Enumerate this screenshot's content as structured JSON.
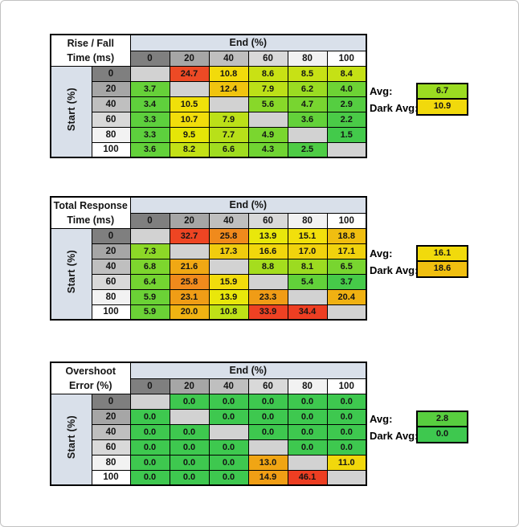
{
  "shared": {
    "end_header": "End (%)",
    "start_header": "Start (%)",
    "col_headers": [
      "0",
      "20",
      "40",
      "60",
      "80",
      "100"
    ],
    "row_headers": [
      "0",
      "20",
      "40",
      "60",
      "80",
      "100"
    ],
    "header_gradient": [
      "#7F7F7F",
      "#A6A6A6",
      "#BFBFBF",
      "#D9D9D9",
      "#F2F2F2",
      "#FFFFFF"
    ],
    "header_blue": "#D9E0EA",
    "blank_cell_color": "#D2D2D2",
    "avg_label": "Avg:",
    "dark_avg_label": "Dark Avg:"
  },
  "chart_data": [
    {
      "type": "heatmap",
      "title": "Rise / Fall Time (ms)",
      "xlabel": "End (%)",
      "ylabel": "Start (%)",
      "x": [
        0,
        20,
        40,
        60,
        80,
        100
      ],
      "y": [
        0,
        20,
        40,
        60,
        80,
        100
      ],
      "values": [
        [
          null,
          24.7,
          10.8,
          8.6,
          8.5,
          8.4
        ],
        [
          3.7,
          null,
          12.4,
          7.9,
          6.2,
          4.0
        ],
        [
          3.4,
          10.5,
          null,
          5.6,
          4.7,
          2.9
        ],
        [
          3.3,
          10.7,
          7.9,
          null,
          3.6,
          2.2
        ],
        [
          3.3,
          9.5,
          7.7,
          4.9,
          null,
          1.5
        ],
        [
          3.6,
          8.2,
          6.6,
          4.3,
          2.5,
          null
        ]
      ],
      "avg": 6.7,
      "dark_avg": 10.9
    },
    {
      "type": "heatmap",
      "title": "Total Response Time (ms)",
      "xlabel": "End (%)",
      "ylabel": "Start (%)",
      "x": [
        0,
        20,
        40,
        60,
        80,
        100
      ],
      "y": [
        0,
        20,
        40,
        60,
        80,
        100
      ],
      "values": [
        [
          null,
          32.7,
          25.8,
          13.9,
          15.1,
          18.8
        ],
        [
          7.3,
          null,
          17.3,
          16.6,
          17.0,
          17.1
        ],
        [
          6.8,
          21.6,
          null,
          8.8,
          8.1,
          6.5
        ],
        [
          6.4,
          25.8,
          15.9,
          null,
          5.4,
          3.7
        ],
        [
          5.9,
          23.1,
          13.9,
          23.3,
          null,
          20.4
        ],
        [
          5.9,
          20.0,
          10.8,
          33.9,
          34.4,
          null
        ]
      ],
      "avg": 16.1,
      "dark_avg": 18.6
    },
    {
      "type": "heatmap",
      "title": "Overshoot Error (%)",
      "xlabel": "End (%)",
      "ylabel": "Start (%)",
      "x": [
        0,
        20,
        40,
        60,
        80,
        100
      ],
      "y": [
        0,
        20,
        40,
        60,
        80,
        100
      ],
      "values": [
        [
          null,
          0.0,
          0.0,
          0.0,
          0.0,
          0.0
        ],
        [
          0.0,
          null,
          0.0,
          0.0,
          0.0,
          0.0
        ],
        [
          0.0,
          0.0,
          null,
          0.0,
          0.0,
          0.0
        ],
        [
          0.0,
          0.0,
          0.0,
          null,
          0.0,
          0.0
        ],
        [
          0.0,
          0.0,
          0.0,
          13.0,
          null,
          11.0
        ],
        [
          0.0,
          0.0,
          0.0,
          14.9,
          46.1,
          null
        ]
      ],
      "avg": 2.8,
      "dark_avg": 0.0
    }
  ],
  "tables": [
    {
      "name": "rise-fall-time",
      "title_lines": [
        "Rise / Fall",
        "Time (ms)"
      ],
      "rows": [
        [
          {
            "v": "",
            "c": "#D2D2D2"
          },
          {
            "v": "24.7",
            "c": "#ED4A25"
          },
          {
            "v": "10.8",
            "c": "#F2DB0B"
          },
          {
            "v": "8.6",
            "c": "#C9E114"
          },
          {
            "v": "8.5",
            "c": "#C7E115"
          },
          {
            "v": "8.4",
            "c": "#C5E115"
          }
        ],
        [
          {
            "v": "3.7",
            "c": "#66D139"
          },
          {
            "v": "",
            "c": "#D2D2D2"
          },
          {
            "v": "12.4",
            "c": "#F0C40F"
          },
          {
            "v": "7.9",
            "c": "#BCE018"
          },
          {
            "v": "6.2",
            "c": "#9ADC22"
          },
          {
            "v": "4.0",
            "c": "#6DD335"
          }
        ],
        [
          {
            "v": "3.4",
            "c": "#5FD03C"
          },
          {
            "v": "10.5",
            "c": "#F0E00A"
          },
          {
            "v": "",
            "c": "#D2D2D2"
          },
          {
            "v": "5.6",
            "c": "#88D829"
          },
          {
            "v": "4.7",
            "c": "#78D530"
          },
          {
            "v": "2.9",
            "c": "#55CE41"
          }
        ],
        [
          {
            "v": "3.3",
            "c": "#5DD03D"
          },
          {
            "v": "10.7",
            "c": "#F1DD0B"
          },
          {
            "v": "7.9",
            "c": "#BCE018"
          },
          {
            "v": "",
            "c": "#D2D2D2"
          },
          {
            "v": "3.6",
            "c": "#63D13A"
          },
          {
            "v": "2.2",
            "c": "#4ACB47"
          }
        ],
        [
          {
            "v": "3.3",
            "c": "#5DD03D"
          },
          {
            "v": "9.5",
            "c": "#E5E607"
          },
          {
            "v": "7.7",
            "c": "#B8E019"
          },
          {
            "v": "4.9",
            "c": "#7AD62F"
          },
          {
            "v": "",
            "c": "#D2D2D2"
          },
          {
            "v": "1.5",
            "c": "#43CA4B"
          }
        ],
        [
          {
            "v": "3.6",
            "c": "#63D13A"
          },
          {
            "v": "8.2",
            "c": "#C3E116"
          },
          {
            "v": "6.6",
            "c": "#A0DC20"
          },
          {
            "v": "4.3",
            "c": "#70D433"
          },
          {
            "v": "2.5",
            "c": "#4ECC45"
          },
          {
            "v": "",
            "c": "#D2D2D2"
          }
        ]
      ],
      "avg": {
        "value": "6.7",
        "color": "#9BDC21"
      },
      "dark_avg": {
        "value": "10.9",
        "color": "#F1D90C"
      }
    },
    {
      "name": "total-response-time",
      "title_lines": [
        "Total Response",
        "Time (ms)"
      ],
      "rows": [
        [
          {
            "v": "",
            "c": "#D2D2D2"
          },
          {
            "v": "32.7",
            "c": "#EE4523"
          },
          {
            "v": "25.8",
            "c": "#F08A1C"
          },
          {
            "v": "13.9",
            "c": "#E9E70B"
          },
          {
            "v": "15.1",
            "c": "#F2E00C"
          },
          {
            "v": "18.8",
            "c": "#F0BE10"
          }
        ],
        [
          {
            "v": "7.3",
            "c": "#8CD827"
          },
          {
            "v": "",
            "c": "#D2D2D2"
          },
          {
            "v": "17.3",
            "c": "#F0CC0E"
          },
          {
            "v": "16.6",
            "c": "#F1D70C"
          },
          {
            "v": "17.0",
            "c": "#F0D30D"
          },
          {
            "v": "17.1",
            "c": "#F0D20D"
          }
        ],
        [
          {
            "v": "6.8",
            "c": "#7DD62E"
          },
          {
            "v": "21.6",
            "c": "#F0A814"
          },
          {
            "v": "",
            "c": "#D2D2D2"
          },
          {
            "v": "8.8",
            "c": "#A5DD1E"
          },
          {
            "v": "8.1",
            "c": "#9CDB21"
          },
          {
            "v": "6.5",
            "c": "#78D530"
          }
        ],
        [
          {
            "v": "6.4",
            "c": "#74D431"
          },
          {
            "v": "25.8",
            "c": "#F08A1C"
          },
          {
            "v": "15.9",
            "c": "#F2DC0C"
          },
          {
            "v": "",
            "c": "#D2D2D2"
          },
          {
            "v": "5.4",
            "c": "#62D13A"
          },
          {
            "v": "3.7",
            "c": "#46CA49"
          }
        ],
        [
          {
            "v": "5.9",
            "c": "#6BD236"
          },
          {
            "v": "23.1",
            "c": "#F09D16"
          },
          {
            "v": "13.9",
            "c": "#E9E70B"
          },
          {
            "v": "23.3",
            "c": "#F09C16"
          },
          {
            "v": "",
            "c": "#D2D2D2"
          },
          {
            "v": "20.4",
            "c": "#F0B112"
          }
        ],
        [
          {
            "v": "5.9",
            "c": "#6BD236"
          },
          {
            "v": "20.0",
            "c": "#F0B312"
          },
          {
            "v": "10.8",
            "c": "#BFE117"
          },
          {
            "v": "33.9",
            "c": "#EE4123"
          },
          {
            "v": "34.4",
            "c": "#ED3E22"
          },
          {
            "v": "",
            "c": "#D2D2D2"
          }
        ]
      ],
      "avg": {
        "value": "16.1",
        "color": "#F1DA0C"
      },
      "dark_avg": {
        "value": "18.6",
        "color": "#F0BF10"
      }
    },
    {
      "name": "overshoot-error",
      "title_lines": [
        "Overshoot",
        "Error (%)"
      ],
      "rows": [
        [
          {
            "v": "",
            "c": "#D2D2D2"
          },
          {
            "v": "0.0",
            "c": "#3EC84F"
          },
          {
            "v": "0.0",
            "c": "#3EC84F"
          },
          {
            "v": "0.0",
            "c": "#3EC84F"
          },
          {
            "v": "0.0",
            "c": "#3EC84F"
          },
          {
            "v": "0.0",
            "c": "#3EC84F"
          }
        ],
        [
          {
            "v": "0.0",
            "c": "#3EC84F"
          },
          {
            "v": "",
            "c": "#D2D2D2"
          },
          {
            "v": "0.0",
            "c": "#3EC84F"
          },
          {
            "v": "0.0",
            "c": "#3EC84F"
          },
          {
            "v": "0.0",
            "c": "#3EC84F"
          },
          {
            "v": "0.0",
            "c": "#3EC84F"
          }
        ],
        [
          {
            "v": "0.0",
            "c": "#3EC84F"
          },
          {
            "v": "0.0",
            "c": "#3EC84F"
          },
          {
            "v": "",
            "c": "#D2D2D2"
          },
          {
            "v": "0.0",
            "c": "#3EC84F"
          },
          {
            "v": "0.0",
            "c": "#3EC84F"
          },
          {
            "v": "0.0",
            "c": "#3EC84F"
          }
        ],
        [
          {
            "v": "0.0",
            "c": "#3EC84F"
          },
          {
            "v": "0.0",
            "c": "#3EC84F"
          },
          {
            "v": "0.0",
            "c": "#3EC84F"
          },
          {
            "v": "",
            "c": "#D2D2D2"
          },
          {
            "v": "0.0",
            "c": "#3EC84F"
          },
          {
            "v": "0.0",
            "c": "#3EC84F"
          }
        ],
        [
          {
            "v": "0.0",
            "c": "#3EC84F"
          },
          {
            "v": "0.0",
            "c": "#3EC84F"
          },
          {
            "v": "0.0",
            "c": "#3EC84F"
          },
          {
            "v": "13.0",
            "c": "#F0A514"
          },
          {
            "v": "",
            "c": "#D2D2D2"
          },
          {
            "v": "11.0",
            "c": "#F1D80C"
          }
        ],
        [
          {
            "v": "0.0",
            "c": "#3EC84F"
          },
          {
            "v": "0.0",
            "c": "#3EC84F"
          },
          {
            "v": "0.0",
            "c": "#3EC84F"
          },
          {
            "v": "14.9",
            "c": "#F09E15"
          },
          {
            "v": "46.1",
            "c": "#ED3E22"
          },
          {
            "v": "",
            "c": "#D2D2D2"
          }
        ]
      ],
      "avg": {
        "value": "2.8",
        "color": "#58CE3F"
      },
      "dark_avg": {
        "value": "0.0",
        "color": "#3EC84F"
      }
    }
  ]
}
